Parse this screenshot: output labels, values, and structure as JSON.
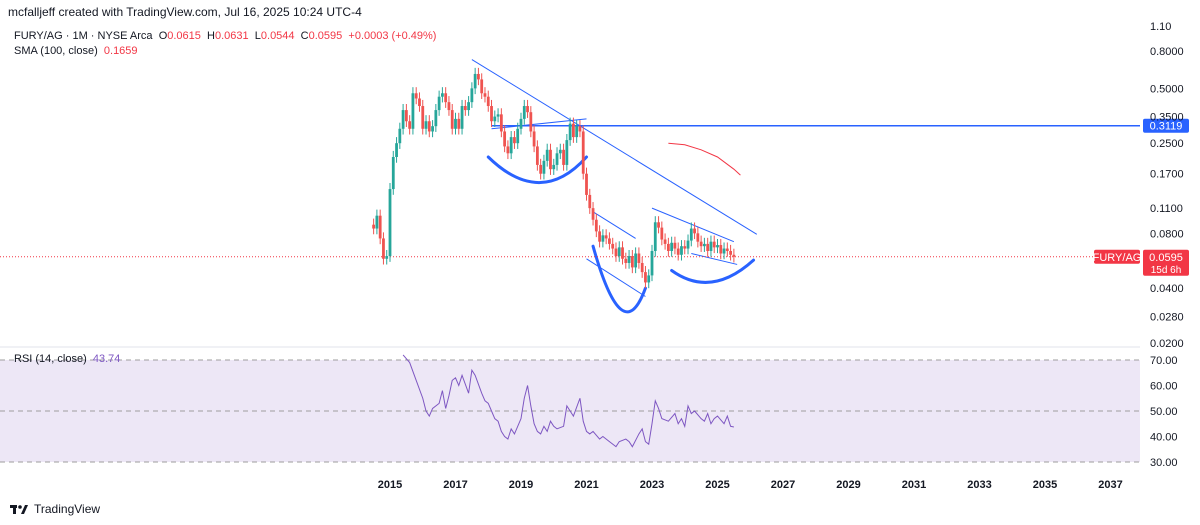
{
  "header": {
    "credit": "mcfalljeff created with TradingView.com, Jul 16, 2025 10:24 UTC-4"
  },
  "legend": {
    "symbol": "FURY/AG · 1M · NYSE Arca",
    "o_label": "O",
    "o_value": "0.0615",
    "h_label": "H",
    "h_value": "0.0631",
    "l_label": "L",
    "l_value": "0.0544",
    "c_label": "C",
    "c_value": "0.0595",
    "change": "+0.0003 (+0.49%)",
    "sma_label": "SMA (100, close)",
    "sma_value": "0.1659"
  },
  "rsi_legend": {
    "label": "RSI (14, close)",
    "value": "43.74"
  },
  "price_badges": {
    "ticker": "FURY/AG",
    "last": "0.0595",
    "countdown": "15d 6h",
    "hline": "0.3119"
  },
  "footer": {
    "brand": "TradingView"
  },
  "colors": {
    "up": "#26a69a",
    "down": "#ef5350",
    "trend": "#2962ff",
    "hline": "#2962ff",
    "sma": "#f23645",
    "rsi": "#7e57c2",
    "rsi_band": "#ede7f6",
    "badge_red": "#f23645"
  },
  "chart_data": {
    "type": "candlestick",
    "scale": "log",
    "price_ticks": [
      "1.10",
      "0.8000",
      "0.5000",
      "0.3500",
      "0.2500",
      "0.1700",
      "0.1100",
      "0.0800",
      "0.0400",
      "0.0280",
      "0.0200"
    ],
    "price_tick_values": [
      1.1,
      0.8,
      0.5,
      0.35,
      0.25,
      0.17,
      0.11,
      0.08,
      0.04,
      0.028,
      0.02
    ],
    "x_ticks": [
      "2015",
      "2017",
      "2019",
      "2021",
      "2023",
      "2025",
      "2027",
      "2029",
      "2031",
      "2033",
      "2035",
      "2037"
    ],
    "x_tick_years": [
      2015,
      2017,
      2019,
      2021,
      2023,
      2025,
      2027,
      2029,
      2031,
      2033,
      2035,
      2037
    ],
    "rsi_ticks": [
      "70.00",
      "60.00",
      "50.00",
      "40.00",
      "30.00"
    ],
    "rsi_tick_values": [
      70,
      60,
      50,
      40,
      30
    ],
    "last_price": 0.0595,
    "hline_price": 0.3119,
    "close_series": [
      [
        2014.5,
        0.085
      ],
      [
        2014.6,
        0.1
      ],
      [
        2014.7,
        0.075
      ],
      [
        2014.8,
        0.058
      ],
      [
        2014.9,
        0.06
      ],
      [
        2015.0,
        0.14
      ],
      [
        2015.1,
        0.21
      ],
      [
        2015.2,
        0.25
      ],
      [
        2015.3,
        0.3
      ],
      [
        2015.4,
        0.38
      ],
      [
        2015.5,
        0.33
      ],
      [
        2015.6,
        0.3
      ],
      [
        2015.7,
        0.47
      ],
      [
        2015.8,
        0.44
      ],
      [
        2015.9,
        0.4
      ],
      [
        2016.0,
        0.3
      ],
      [
        2016.1,
        0.33
      ],
      [
        2016.2,
        0.29
      ],
      [
        2016.3,
        0.31
      ],
      [
        2016.4,
        0.38
      ],
      [
        2016.5,
        0.45
      ],
      [
        2016.6,
        0.47
      ],
      [
        2016.7,
        0.42
      ],
      [
        2016.8,
        0.38
      ],
      [
        2016.9,
        0.3
      ],
      [
        2017.0,
        0.34
      ],
      [
        2017.1,
        0.3
      ],
      [
        2017.2,
        0.4
      ],
      [
        2017.3,
        0.38
      ],
      [
        2017.4,
        0.42
      ],
      [
        2017.5,
        0.5
      ],
      [
        2017.6,
        0.6
      ],
      [
        2017.7,
        0.56
      ],
      [
        2017.8,
        0.47
      ],
      [
        2017.9,
        0.45
      ],
      [
        2018.0,
        0.4
      ],
      [
        2018.1,
        0.33
      ],
      [
        2018.2,
        0.35
      ],
      [
        2018.3,
        0.36
      ],
      [
        2018.4,
        0.29
      ],
      [
        2018.5,
        0.24
      ],
      [
        2018.6,
        0.22
      ],
      [
        2018.7,
        0.27
      ],
      [
        2018.8,
        0.25
      ],
      [
        2018.9,
        0.3
      ],
      [
        2019.0,
        0.34
      ],
      [
        2019.1,
        0.4
      ],
      [
        2019.2,
        0.37
      ],
      [
        2019.3,
        0.29
      ],
      [
        2019.4,
        0.24
      ],
      [
        2019.5,
        0.19
      ],
      [
        2019.6,
        0.17
      ],
      [
        2019.7,
        0.2
      ],
      [
        2019.8,
        0.23
      ],
      [
        2019.9,
        0.18
      ],
      [
        2020.0,
        0.19
      ],
      [
        2020.1,
        0.22
      ],
      [
        2020.2,
        0.23
      ],
      [
        2020.3,
        0.19
      ],
      [
        2020.4,
        0.26
      ],
      [
        2020.5,
        0.32
      ],
      [
        2020.6,
        0.27
      ],
      [
        2020.7,
        0.31
      ],
      [
        2020.8,
        0.29
      ],
      [
        2020.9,
        0.17
      ],
      [
        2021.0,
        0.13
      ],
      [
        2021.1,
        0.11
      ],
      [
        2021.2,
        0.095
      ],
      [
        2021.3,
        0.082
      ],
      [
        2021.4,
        0.072
      ],
      [
        2021.5,
        0.078
      ],
      [
        2021.6,
        0.075
      ],
      [
        2021.7,
        0.07
      ],
      [
        2021.8,
        0.066
      ],
      [
        2021.9,
        0.06
      ],
      [
        2022.0,
        0.067
      ],
      [
        2022.1,
        0.058
      ],
      [
        2022.2,
        0.055
      ],
      [
        2022.3,
        0.06
      ],
      [
        2022.4,
        0.052
      ],
      [
        2022.5,
        0.062
      ],
      [
        2022.6,
        0.055
      ],
      [
        2022.7,
        0.049
      ],
      [
        2022.8,
        0.043
      ],
      [
        2022.9,
        0.047
      ],
      [
        2023.0,
        0.064
      ],
      [
        2023.1,
        0.092
      ],
      [
        2023.2,
        0.086
      ],
      [
        2023.3,
        0.074
      ],
      [
        2023.4,
        0.07
      ],
      [
        2023.5,
        0.064
      ],
      [
        2023.6,
        0.071
      ],
      [
        2023.7,
        0.066
      ],
      [
        2023.8,
        0.061
      ],
      [
        2023.9,
        0.068
      ],
      [
        2024.0,
        0.066
      ],
      [
        2024.1,
        0.073
      ],
      [
        2024.2,
        0.085
      ],
      [
        2024.3,
        0.08
      ],
      [
        2024.4,
        0.072
      ],
      [
        2024.5,
        0.068
      ],
      [
        2024.6,
        0.07
      ],
      [
        2024.7,
        0.064
      ],
      [
        2024.8,
        0.072
      ],
      [
        2024.9,
        0.067
      ],
      [
        2025.0,
        0.069
      ],
      [
        2025.1,
        0.062
      ],
      [
        2025.2,
        0.066
      ],
      [
        2025.3,
        0.064
      ],
      [
        2025.4,
        0.061
      ],
      [
        2025.5,
        0.0595
      ]
    ],
    "sma_series": [
      [
        2023.5,
        0.25
      ],
      [
        2024.0,
        0.245
      ],
      [
        2024.5,
        0.23
      ],
      [
        2025.0,
        0.21
      ],
      [
        2025.5,
        0.18
      ],
      [
        2025.7,
        0.167
      ]
    ],
    "rsi_series": [
      [
        2015.4,
        72
      ],
      [
        2015.6,
        69
      ],
      [
        2015.8,
        62
      ],
      [
        2016.0,
        55
      ],
      [
        2016.1,
        50
      ],
      [
        2016.2,
        48
      ],
      [
        2016.3,
        51
      ],
      [
        2016.5,
        53
      ],
      [
        2016.6,
        58
      ],
      [
        2016.7,
        51
      ],
      [
        2016.8,
        56
      ],
      [
        2016.9,
        62
      ],
      [
        2017.0,
        63
      ],
      [
        2017.1,
        60
      ],
      [
        2017.2,
        64
      ],
      [
        2017.4,
        57
      ],
      [
        2017.5,
        66
      ],
      [
        2017.6,
        64
      ],
      [
        2017.8,
        57
      ],
      [
        2017.9,
        54
      ],
      [
        2018.0,
        53
      ],
      [
        2018.1,
        50
      ],
      [
        2018.2,
        47
      ],
      [
        2018.3,
        46
      ],
      [
        2018.4,
        42
      ],
      [
        2018.5,
        40
      ],
      [
        2018.6,
        39
      ],
      [
        2018.7,
        43
      ],
      [
        2018.8,
        41
      ],
      [
        2018.9,
        44
      ],
      [
        2019.0,
        47
      ],
      [
        2019.1,
        55
      ],
      [
        2019.2,
        60
      ],
      [
        2019.3,
        52
      ],
      [
        2019.4,
        45
      ],
      [
        2019.5,
        42
      ],
      [
        2019.6,
        41
      ],
      [
        2019.7,
        44
      ],
      [
        2019.8,
        42
      ],
      [
        2019.9,
        46
      ],
      [
        2020.0,
        44
      ],
      [
        2020.1,
        43
      ],
      [
        2020.3,
        44
      ],
      [
        2020.4,
        52
      ],
      [
        2020.5,
        50
      ],
      [
        2020.6,
        48
      ],
      [
        2020.8,
        55
      ],
      [
        2020.9,
        46
      ],
      [
        2021.0,
        42
      ],
      [
        2021.1,
        41
      ],
      [
        2021.2,
        42
      ],
      [
        2021.4,
        39
      ],
      [
        2021.5,
        40
      ],
      [
        2021.7,
        38
      ],
      [
        2021.8,
        37
      ],
      [
        2021.9,
        36
      ],
      [
        2022.0,
        38
      ],
      [
        2022.2,
        39
      ],
      [
        2022.3,
        38
      ],
      [
        2022.4,
        36
      ],
      [
        2022.6,
        41
      ],
      [
        2022.7,
        43
      ],
      [
        2022.8,
        38
      ],
      [
        2022.9,
        37
      ],
      [
        2023.0,
        45
      ],
      [
        2023.1,
        54
      ],
      [
        2023.2,
        51
      ],
      [
        2023.3,
        47
      ],
      [
        2023.5,
        46
      ],
      [
        2023.7,
        49
      ],
      [
        2023.8,
        45
      ],
      [
        2023.9,
        47
      ],
      [
        2024.0,
        44
      ],
      [
        2024.1,
        52
      ],
      [
        2024.2,
        49
      ],
      [
        2024.3,
        50
      ],
      [
        2024.5,
        47
      ],
      [
        2024.6,
        46
      ],
      [
        2024.7,
        49
      ],
      [
        2024.8,
        45
      ],
      [
        2024.9,
        47
      ],
      [
        2025.0,
        48
      ],
      [
        2025.2,
        45
      ],
      [
        2025.3,
        48
      ],
      [
        2025.4,
        44
      ],
      [
        2025.5,
        43.74
      ]
    ],
    "rsi_levels": {
      "upper": 70,
      "middle": 50,
      "lower": 30
    }
  }
}
